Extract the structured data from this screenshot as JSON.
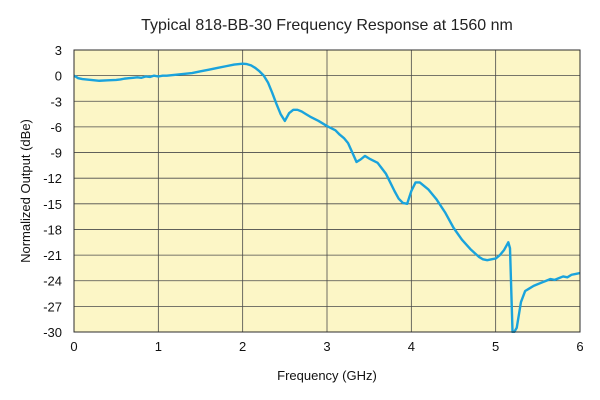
{
  "chart_data": {
    "type": "line",
    "title": "Typical 818-BB-30 Frequency Response at 1560 nm",
    "xlabel": "Frequency (GHz)",
    "ylabel": "Normalized Output (dBe)",
    "xlim": [
      0,
      6
    ],
    "ylim": [
      -30,
      3
    ],
    "xticks": [
      "0",
      "1",
      "2",
      "3",
      "4",
      "5",
      "6"
    ],
    "yticks": [
      "3",
      "0",
      "-3",
      "-6",
      "-9",
      "-12",
      "-15",
      "-18",
      "-21",
      "-24",
      "-27",
      "-30"
    ],
    "grid": true,
    "background_color": "#fcf6c6",
    "series": [
      {
        "color": "#1aa3dc",
        "x": [
          0,
          0.05,
          0.1,
          0.2,
          0.3,
          0.4,
          0.5,
          0.55,
          0.6,
          0.65,
          0.7,
          0.75,
          0.8,
          0.85,
          0.9,
          0.95,
          1.0,
          1.05,
          1.1,
          1.2,
          1.3,
          1.4,
          1.5,
          1.6,
          1.7,
          1.8,
          1.9,
          2.0,
          2.05,
          2.1,
          2.15,
          2.2,
          2.25,
          2.3,
          2.35,
          2.4,
          2.45,
          2.5,
          2.55,
          2.6,
          2.65,
          2.7,
          2.75,
          2.8,
          2.9,
          3.0,
          3.1,
          3.15,
          3.2,
          3.25,
          3.3,
          3.35,
          3.4,
          3.45,
          3.5,
          3.6,
          3.7,
          3.75,
          3.8,
          3.85,
          3.9,
          3.95,
          4.0,
          4.05,
          4.1,
          4.2,
          4.3,
          4.4,
          4.5,
          4.6,
          4.7,
          4.8,
          4.85,
          4.9,
          4.95,
          5.0,
          5.05,
          5.1,
          5.15,
          5.17,
          5.2,
          5.22,
          5.25,
          5.3,
          5.35,
          5.4,
          5.45,
          5.5,
          5.55,
          5.6,
          5.65,
          5.7,
          5.75,
          5.8,
          5.85,
          5.9,
          5.95,
          6.0
        ],
        "y": [
          0,
          -0.3,
          -0.4,
          -0.5,
          -0.6,
          -0.55,
          -0.5,
          -0.45,
          -0.35,
          -0.3,
          -0.25,
          -0.2,
          -0.25,
          -0.1,
          -0.15,
          0,
          -0.1,
          0,
          0,
          0.1,
          0.2,
          0.3,
          0.5,
          0.7,
          0.9,
          1.1,
          1.3,
          1.4,
          1.35,
          1.2,
          0.9,
          0.5,
          0,
          -0.8,
          -2.0,
          -3.3,
          -4.5,
          -5.3,
          -4.4,
          -4.0,
          -4.0,
          -4.2,
          -4.5,
          -4.8,
          -5.3,
          -5.9,
          -6.4,
          -6.9,
          -7.3,
          -7.9,
          -9.0,
          -10.1,
          -9.8,
          -9.4,
          -9.7,
          -10.2,
          -11.5,
          -12.5,
          -13.5,
          -14.4,
          -14.9,
          -15.0,
          -13.5,
          -12.5,
          -12.5,
          -13.3,
          -14.5,
          -16.0,
          -17.8,
          -19.2,
          -20.3,
          -21.2,
          -21.5,
          -21.6,
          -21.5,
          -21.4,
          -21.0,
          -20.4,
          -19.5,
          -20.2,
          -30,
          -30,
          -29.5,
          -26.5,
          -25.2,
          -24.9,
          -24.6,
          -24.4,
          -24.2,
          -24.0,
          -23.8,
          -23.9,
          -23.7,
          -23.5,
          -23.6,
          -23.3,
          -23.2,
          -23.1
        ]
      }
    ]
  }
}
